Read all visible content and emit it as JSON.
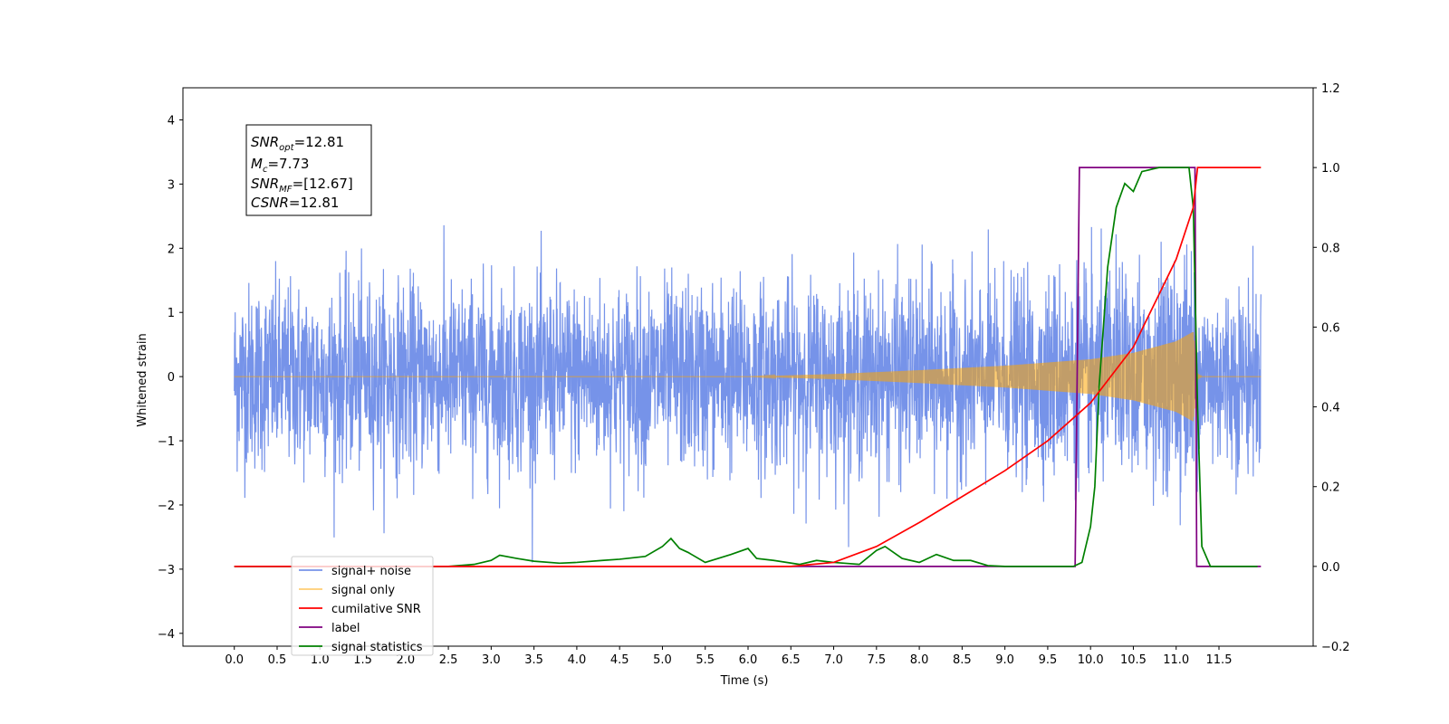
{
  "chart_data": {
    "type": "line",
    "xlabel": "Time (s)",
    "ylabel": "Whitened strain",
    "xlim": [
      -0.6,
      12.6
    ],
    "ylim_left": [
      -4.2,
      4.5
    ],
    "ylim_right": [
      -0.2,
      1.2
    ],
    "x_ticks": [
      "0.0",
      "0.5",
      "1.0",
      "1.5",
      "2.0",
      "2.5",
      "3.0",
      "3.5",
      "4.0",
      "4.5",
      "5.0",
      "5.5",
      "6.0",
      "6.5",
      "7.0",
      "7.5",
      "8.0",
      "8.5",
      "9.0",
      "9.5",
      "10.0",
      "10.5",
      "11.0",
      "11.5"
    ],
    "y_ticks_left": [
      "4",
      "3",
      "2",
      "1",
      "0",
      "−1",
      "−2",
      "−3",
      "−4"
    ],
    "y_ticks_right": [
      "1.2",
      "1.0",
      "0.8",
      "0.6",
      "0.4",
      "0.2",
      "0.0",
      "−0.2"
    ],
    "grid": false,
    "legend_position": "lower-left",
    "annotation": {
      "snr_opt": {
        "sym": "SNR",
        "sub": "opt",
        "value": "=12.81"
      },
      "mc": {
        "sym": "M",
        "sub": "c",
        "value": "=7.73"
      },
      "snr_mf": {
        "sym": "SNR",
        "sub": "MF",
        "value": "=[12.67]"
      },
      "csnr": {
        "sym": "CSNR",
        "value": "=12.81"
      }
    },
    "series": [
      {
        "name": "signal+ noise",
        "color": "#4169e1",
        "axis": "left",
        "approx_std": 0.72,
        "x_range": [
          0.0,
          11.99
        ]
      },
      {
        "name": "signal only",
        "color": "#ffa500",
        "axis": "left",
        "envelope_x": [
          0.0,
          6.0,
          7.0,
          8.0,
          9.0,
          10.0,
          10.5,
          11.0,
          11.2,
          11.25,
          11.3,
          11.99
        ],
        "envelope_y": [
          0.0,
          0.0,
          0.04,
          0.1,
          0.17,
          0.27,
          0.37,
          0.55,
          0.7,
          0.05,
          0.0,
          0.0
        ]
      },
      {
        "name": "cumilative SNR",
        "color": "#ff0000",
        "axis": "right",
        "x": [
          0.0,
          6.5,
          7.0,
          7.5,
          8.0,
          8.5,
          9.0,
          9.5,
          10.0,
          10.5,
          11.0,
          11.2,
          11.25,
          11.99
        ],
        "y": [
          0.0,
          0.0,
          0.01,
          0.05,
          0.11,
          0.175,
          0.24,
          0.315,
          0.41,
          0.55,
          0.77,
          0.9,
          1.0,
          1.0
        ]
      },
      {
        "name": "label",
        "color": "#800080",
        "axis": "right",
        "x": [
          0.0,
          9.82,
          9.87,
          11.22,
          11.24,
          11.99
        ],
        "y": [
          0.0,
          0.0,
          1.0,
          1.0,
          0.0,
          0.0
        ]
      },
      {
        "name": "signal statistics",
        "color": "#008000",
        "axis": "right",
        "x": [
          0.0,
          2.5,
          2.8,
          3.0,
          3.1,
          3.3,
          3.5,
          3.8,
          4.0,
          4.3,
          4.5,
          4.8,
          5.0,
          5.1,
          5.2,
          5.3,
          5.5,
          5.8,
          6.0,
          6.1,
          6.3,
          6.6,
          6.8,
          7.0,
          7.3,
          7.5,
          7.6,
          7.8,
          8.0,
          8.2,
          8.4,
          8.6,
          8.8,
          9.0,
          9.8,
          9.9,
          10.0,
          10.05,
          10.1,
          10.2,
          10.3,
          10.4,
          10.5,
          10.6,
          10.8,
          11.0,
          11.15,
          11.2,
          11.25,
          11.3,
          11.4,
          11.95
        ],
        "y": [
          0.0,
          0.0,
          0.005,
          0.015,
          0.028,
          0.02,
          0.013,
          0.008,
          0.01,
          0.015,
          0.018,
          0.025,
          0.05,
          0.07,
          0.045,
          0.035,
          0.01,
          0.03,
          0.045,
          0.02,
          0.015,
          0.005,
          0.015,
          0.01,
          0.005,
          0.04,
          0.05,
          0.02,
          0.01,
          0.03,
          0.015,
          0.015,
          0.002,
          0.0,
          0.0,
          0.01,
          0.1,
          0.2,
          0.45,
          0.75,
          0.9,
          0.96,
          0.94,
          0.99,
          1.0,
          1.0,
          1.0,
          0.9,
          0.4,
          0.05,
          0.0,
          0.0
        ]
      }
    ]
  }
}
